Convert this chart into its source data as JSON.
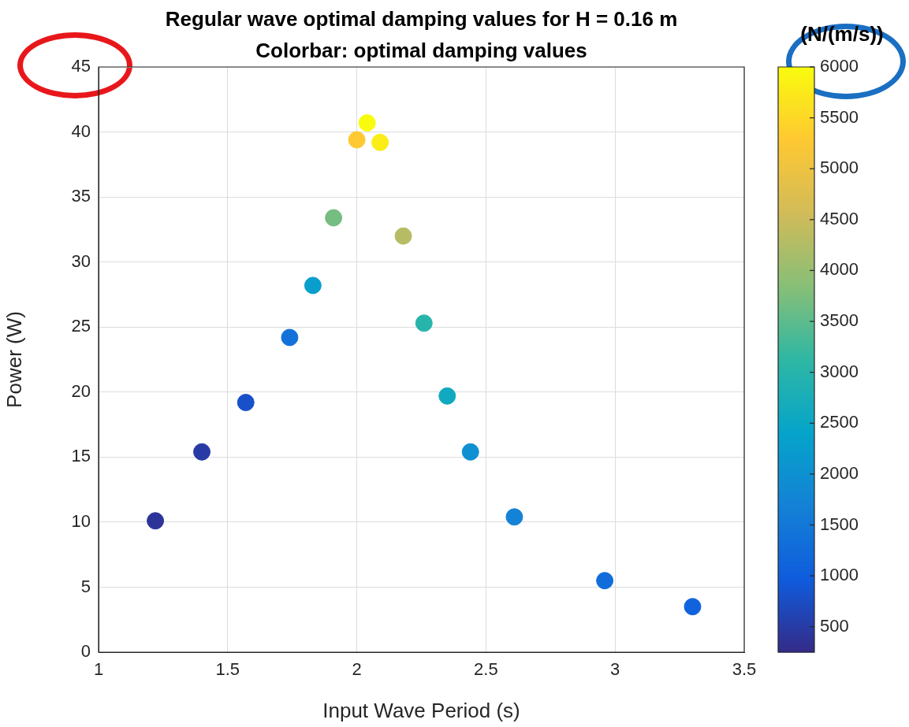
{
  "chart_data": {
    "type": "scatter",
    "title": "Regular wave optimal damping values for H = 0.16 m",
    "subtitle": "Colorbar: optimal damping values",
    "xlabel": "Input Wave Period (s)",
    "ylabel": "Power (W)",
    "clabel": "(N/(m/s))",
    "x": [
      1.22,
      1.4,
      1.57,
      1.74,
      1.83,
      1.91,
      2.0,
      2.04,
      2.09,
      2.18,
      2.26,
      2.35,
      2.44,
      2.61,
      2.96,
      3.3
    ],
    "values": [
      10.1,
      15.4,
      19.2,
      24.2,
      28.2,
      33.4,
      39.4,
      40.7,
      39.2,
      32.0,
      25.3,
      19.7,
      15.4,
      10.4,
      5.5,
      3.5
    ],
    "cvalues": [
      400,
      500,
      800,
      1400,
      2300,
      3700,
      5300,
      6000,
      5800,
      4300,
      3000,
      2600,
      2000,
      1700,
      1300,
      1100
    ],
    "clim": [
      250,
      6000
    ],
    "cticks": [
      500,
      1000,
      1500,
      2000,
      2500,
      3000,
      3500,
      4000,
      4500,
      5000,
      5500,
      6000
    ],
    "xlim": [
      1,
      3.5
    ],
    "xticks": [
      1,
      1.5,
      2,
      2.5,
      3,
      3.5
    ],
    "ylim": [
      0,
      45
    ],
    "yticks": [
      0,
      5,
      10,
      15,
      20,
      25,
      30,
      35,
      40,
      45
    ],
    "grid": true,
    "marker": "circle",
    "legend": false
  }
}
